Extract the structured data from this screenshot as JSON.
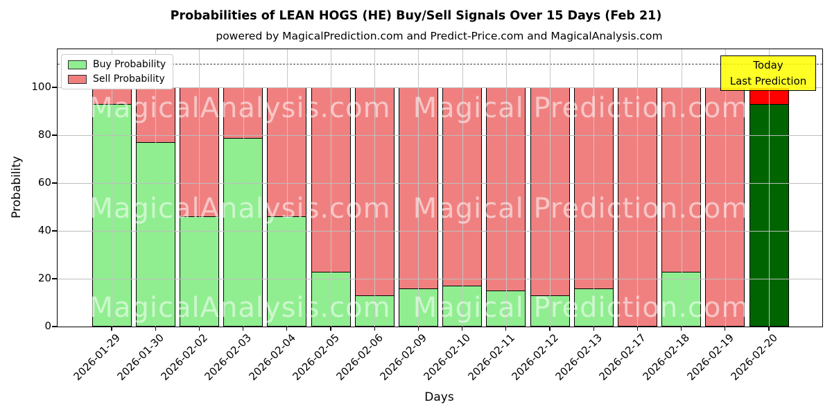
{
  "title": "Probabilities of LEAN HOGS (HE) Buy/Sell Signals Over 15 Days (Feb 21)",
  "subtitle": "powered by MagicalPrediction.com and Predict-Price.com and MagicalAnalysis.com",
  "axes": {
    "x_label": "Days",
    "y_label": "Probability",
    "y_ticks": [
      0,
      20,
      40,
      60,
      80,
      100
    ],
    "ylim": [
      0,
      116
    ],
    "dashed_line_y": 110,
    "grid": true
  },
  "legend": {
    "position": "upper left",
    "items": [
      {
        "key": "buy",
        "label": "Buy Probability",
        "color": "#90ee90"
      },
      {
        "key": "sell",
        "label": "Sell Probability",
        "color": "#f08080"
      }
    ]
  },
  "annotation_box": {
    "line1": "Today",
    "line2": "Last Prediction",
    "bg_color": "#ffff00"
  },
  "watermarks": {
    "left_text": "MagicalAnalysis.com",
    "right_text": "Magical Prediction.com"
  },
  "chart_data": {
    "type": "bar",
    "stacked": true,
    "title": "Probabilities of LEAN HOGS (HE) Buy/Sell Signals Over 15 Days (Feb 21)",
    "xlabel": "Days",
    "ylabel": "Probability",
    "ylim": [
      0,
      116
    ],
    "grid": true,
    "legend_position": "upper left",
    "categories": [
      "2026-01-29",
      "2026-01-30",
      "2026-02-02",
      "2026-02-03",
      "2026-02-04",
      "2026-02-05",
      "2026-02-06",
      "2026-02-09",
      "2026-02-10",
      "2026-02-11",
      "2026-02-12",
      "2026-02-13",
      "2026-02-17",
      "2026-02-18",
      "2026-02-19",
      "2026-02-20"
    ],
    "series": [
      {
        "name": "Buy Probability",
        "values": [
          93,
          77,
          46,
          79,
          46,
          23,
          13,
          16,
          17,
          15,
          13,
          16,
          0,
          23,
          0,
          93
        ],
        "colors": [
          "#90ee90",
          "#90ee90",
          "#90ee90",
          "#90ee90",
          "#90ee90",
          "#90ee90",
          "#90ee90",
          "#90ee90",
          "#90ee90",
          "#90ee90",
          "#90ee90",
          "#90ee90",
          "#90ee90",
          "#90ee90",
          "#90ee90",
          "#006400"
        ]
      },
      {
        "name": "Sell Probability",
        "values": [
          7,
          23,
          54,
          21,
          54,
          77,
          87,
          84,
          83,
          85,
          87,
          84,
          100,
          77,
          100,
          7
        ],
        "colors": [
          "#f08080",
          "#f08080",
          "#f08080",
          "#f08080",
          "#f08080",
          "#f08080",
          "#f08080",
          "#f08080",
          "#f08080",
          "#f08080",
          "#f08080",
          "#f08080",
          "#f08080",
          "#f08080",
          "#f08080",
          "#ff0000"
        ]
      }
    ],
    "bar_edge_color": "#000000"
  }
}
